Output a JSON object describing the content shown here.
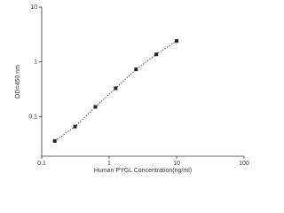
{
  "chart_data": {
    "type": "scatter",
    "x_label": "Human PYGL Concentration(ng/ml)",
    "y_label": "OD=450 nm",
    "x": [
      0.156,
      0.312,
      0.625,
      1.25,
      2.5,
      5,
      10
    ],
    "series": [
      {
        "color": "#222222",
        "values": [
          0.036,
          0.066,
          0.151,
          0.331,
          0.73,
          1.37,
          2.41
        ]
      }
    ],
    "xlim": [
      0.1,
      100
    ],
    "ylim": [
      0.019,
      10
    ],
    "xticks": [
      0.1,
      1,
      10,
      100
    ],
    "yticks": [
      0.1,
      1,
      10
    ],
    "log_x": true,
    "log_y": true,
    "fit_line": true
  }
}
